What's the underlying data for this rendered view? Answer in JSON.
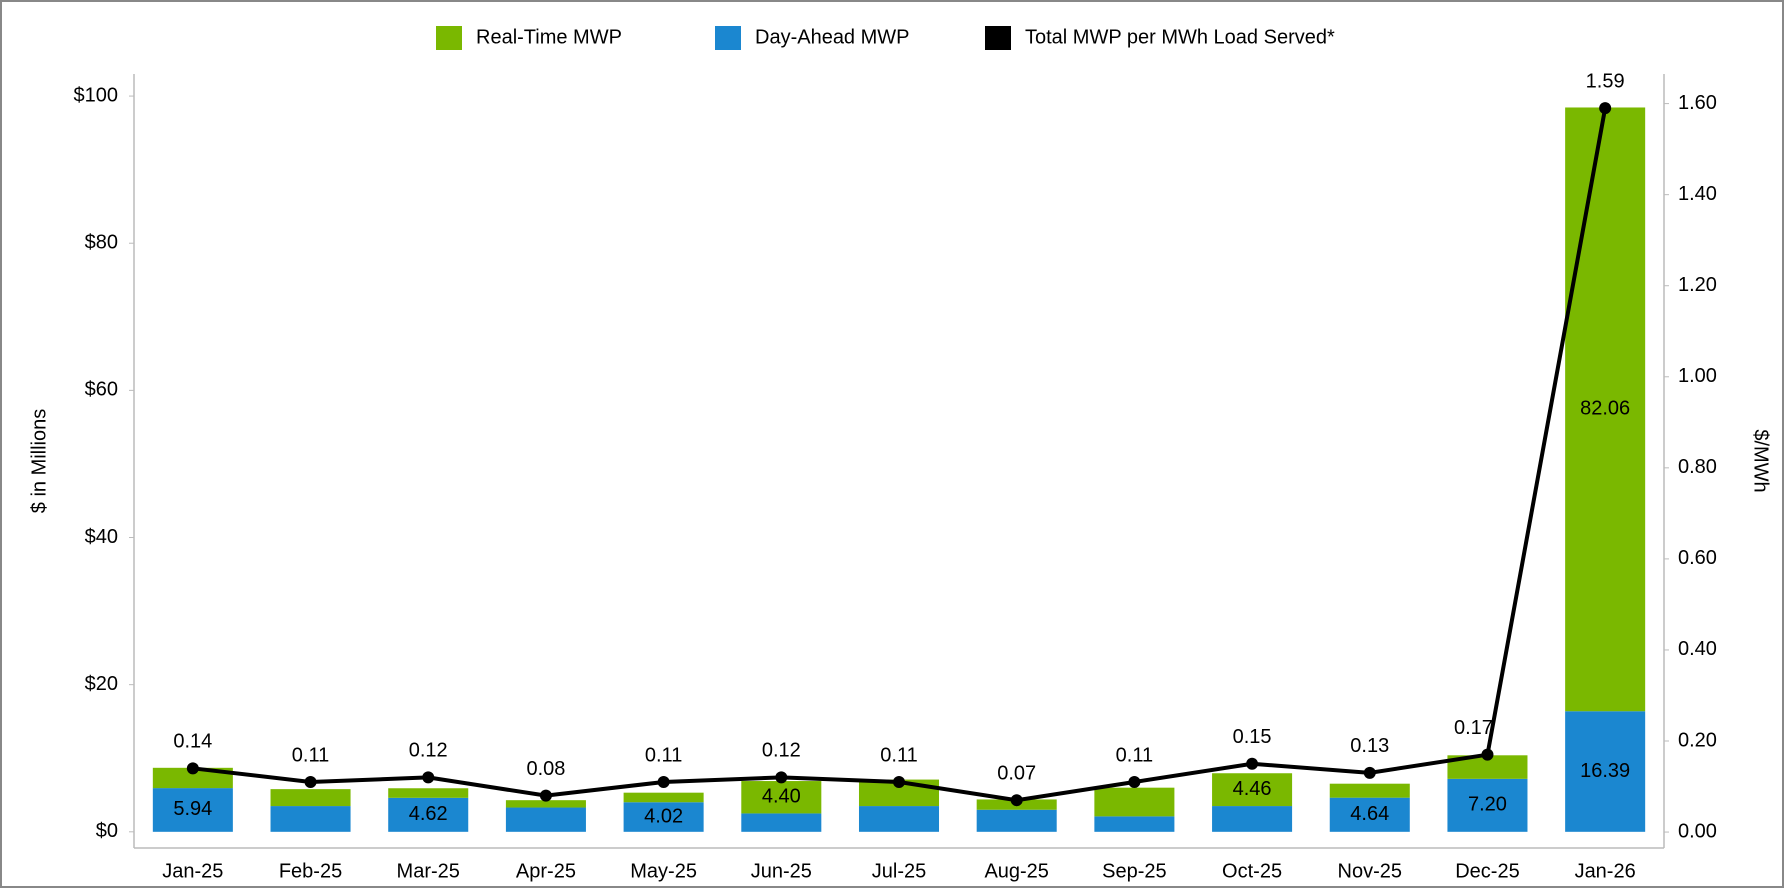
{
  "chart_data": {
    "type": "bar",
    "stacked": true,
    "categories": [
      "Jan-25",
      "Feb-25",
      "Mar-25",
      "Apr-25",
      "May-25",
      "Jun-25",
      "Jul-25",
      "Aug-25",
      "Sep-25",
      "Oct-25",
      "Nov-25",
      "Dec-25",
      "Jan-26"
    ],
    "series": [
      {
        "name": "Real-Time MWP",
        "color": "#7ab800",
        "values": [
          2.76,
          2.3,
          1.3,
          1.0,
          1.3,
          4.4,
          3.6,
          1.4,
          3.9,
          4.46,
          1.9,
          3.2,
          82.06
        ],
        "value_labels": [
          null,
          null,
          null,
          null,
          null,
          "4.40",
          null,
          null,
          null,
          "4.46",
          null,
          null,
          "82.06"
        ]
      },
      {
        "name": "Day-Ahead MWP",
        "color": "#1b87d0",
        "values": [
          5.94,
          3.5,
          4.62,
          3.3,
          4.02,
          2.5,
          3.5,
          3.0,
          2.1,
          3.5,
          4.64,
          7.2,
          16.39
        ],
        "value_labels": [
          "5.94",
          null,
          "4.62",
          null,
          "4.02",
          null,
          null,
          null,
          null,
          null,
          "4.64",
          "7.20",
          "16.39"
        ]
      },
      {
        "name": "Total MWP per MWh Load Served*",
        "color": "#000000",
        "type": "line",
        "axis": "y2",
        "values": [
          0.14,
          0.11,
          0.12,
          0.08,
          0.11,
          0.12,
          0.11,
          0.07,
          0.11,
          0.15,
          0.13,
          0.17,
          1.59
        ]
      }
    ],
    "ylabel": "$ in Millions",
    "y2label": "$/MWh",
    "ylim": [
      -2.2,
      103
    ],
    "yticks": [
      {
        "value": 0,
        "label": "$0"
      },
      {
        "value": 20,
        "label": "$20"
      },
      {
        "value": 40,
        "label": "$40"
      },
      {
        "value": 60,
        "label": "$60"
      },
      {
        "value": 80,
        "label": "$80"
      },
      {
        "value": 100,
        "label": "$100"
      }
    ],
    "y2lim": [
      -0.035,
      1.665
    ],
    "y2ticks": [
      {
        "value": 0,
        "label": "0.00"
      },
      {
        "value": 0.2,
        "label": "0.20"
      },
      {
        "value": 0.4,
        "label": "0.40"
      },
      {
        "value": 0.6,
        "label": "0.60"
      },
      {
        "value": 0.8,
        "label": "0.80"
      },
      {
        "value": 1.0,
        "label": "1.00"
      },
      {
        "value": 1.2,
        "label": "1.20"
      },
      {
        "value": 1.4,
        "label": "1.40"
      },
      {
        "value": 1.6,
        "label": "1.60"
      }
    ],
    "legend": "top",
    "grid": false
  }
}
